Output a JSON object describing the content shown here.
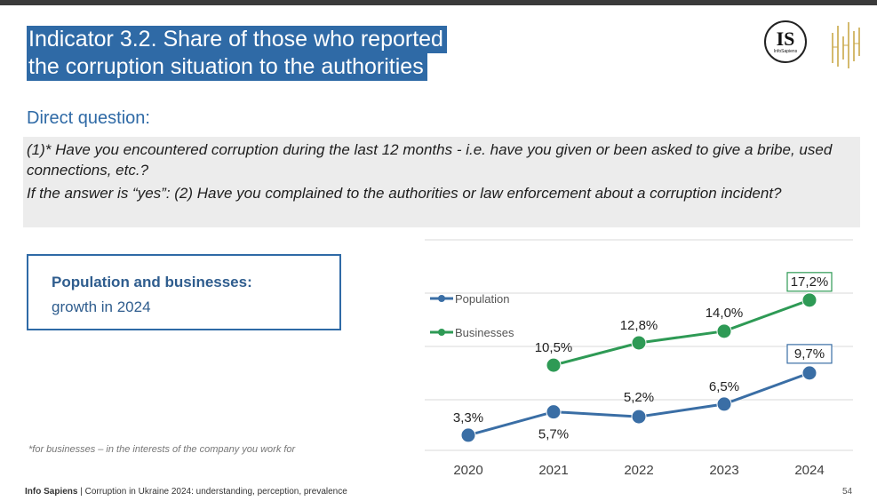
{
  "slide": {
    "title_line1": "Indicator 3.2. Share of those who reported",
    "title_line2": "the corruption situation to the authorities",
    "subtitle": "Direct question:",
    "question1": "(1)* Have you encountered corruption during the last 12 months - i.e. have you given or been asked to give a bribe, used connections, etc.?",
    "question2": "If the answer is “yes”: (2) Have you complained to the authorities or law enforcement about a corruption incident?",
    "callout_title": "Population and businesses:",
    "callout_sub": "growth in 2024",
    "footnote": "*for businesses – in the interests of the company you work for",
    "footer_brand": "Info Sapiens",
    "footer_text": " | Corruption in Ukraine 2024: understanding, perception, prevalence",
    "page_number": "54"
  },
  "logo": {
    "initials": "IS",
    "small_text": "InfoSapiens"
  },
  "colors": {
    "title_bg": "#2f6aa6",
    "population": "#3a6ea5",
    "businesses": "#2e9a55",
    "highlight_box_population": "#3a6ea5",
    "highlight_box_businesses": "#2e9a55"
  },
  "chart_data": {
    "type": "line",
    "categories": [
      "2020",
      "2021",
      "2022",
      "2023",
      "2024"
    ],
    "series": [
      {
        "name": "Population",
        "values": [
          3.3,
          5.7,
          5.2,
          6.5,
          9.7
        ],
        "labels": [
          "3,3%",
          "5,7%",
          "5,2%",
          "6,5%",
          "9,7%"
        ]
      },
      {
        "name": "Businesses",
        "values": [
          null,
          10.5,
          12.8,
          14.0,
          17.2
        ],
        "labels": [
          "",
          "10,5%",
          "12,8%",
          "14,0%",
          "17,2%"
        ]
      }
    ],
    "highlighted": "2024",
    "ylim": [
      0,
      20
    ],
    "grid": true,
    "legend": "left"
  }
}
